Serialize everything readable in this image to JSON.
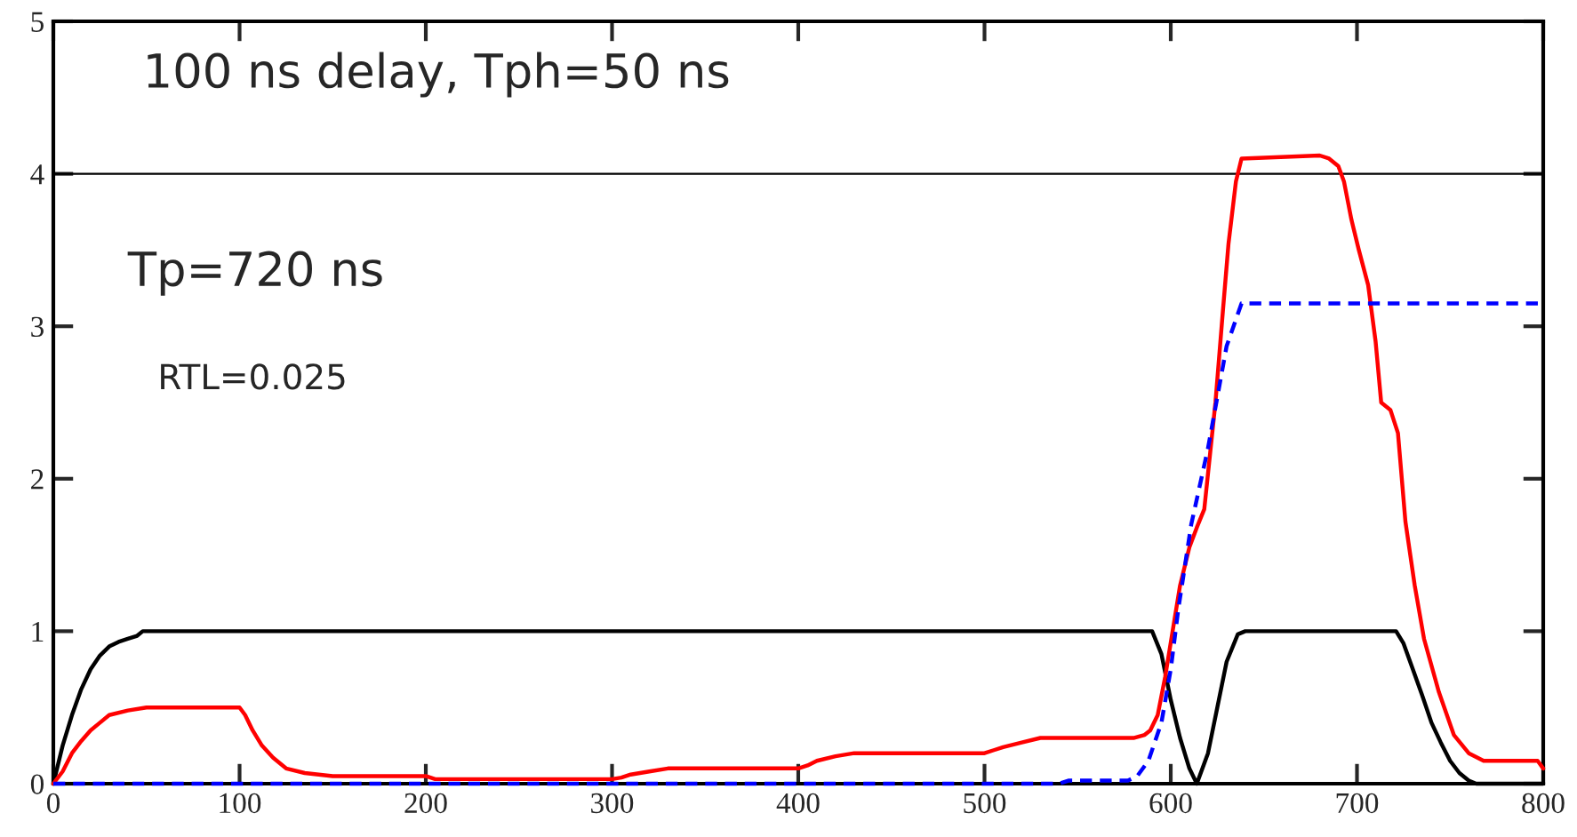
{
  "chart_data": {
    "type": "line",
    "xlim": [
      0,
      800
    ],
    "ylim": [
      0,
      5
    ],
    "xticks": [
      0,
      100,
      200,
      300,
      400,
      500,
      600,
      700,
      800
    ],
    "yticks": [
      0,
      1,
      2,
      3,
      4,
      5
    ],
    "grid": false,
    "legend": false,
    "annotations": [
      "100 ns delay, Tph=50 ns",
      "Tp=720 ns",
      "RTL=0.025"
    ],
    "ref_lines": [
      {
        "axis": "y",
        "value": 4,
        "color": "#000000"
      }
    ],
    "series": [
      {
        "color": "#000000",
        "line_style": "solid",
        "x": [
          0,
          5,
          10,
          15,
          20,
          25,
          30,
          35,
          40,
          45,
          48,
          590,
          595,
          600,
          605,
          610,
          614,
          620,
          625,
          630,
          636,
          640,
          721,
          725,
          730,
          735,
          740,
          745,
          750,
          755,
          760,
          764,
          800
        ],
        "values": [
          0,
          0.25,
          0.45,
          0.62,
          0.75,
          0.84,
          0.9,
          0.93,
          0.95,
          0.97,
          1,
          1,
          0.85,
          0.55,
          0.3,
          0.1,
          0,
          0.2,
          0.5,
          0.8,
          0.98,
          1,
          1,
          0.92,
          0.75,
          0.58,
          0.4,
          0.27,
          0.15,
          0.07,
          0.02,
          0,
          0
        ]
      },
      {
        "color": "#ff0000",
        "line_style": "solid",
        "x": [
          0,
          5,
          10,
          15,
          20,
          25,
          30,
          40,
          50,
          100,
          103,
          107,
          112,
          118,
          125,
          135,
          150,
          200,
          205,
          300,
          305,
          310,
          320,
          330,
          400,
          405,
          410,
          420,
          430,
          500,
          505,
          510,
          520,
          530,
          580,
          586,
          589,
          593,
          597,
          601,
          605,
          610,
          614,
          618,
          624,
          628,
          631,
          635,
          638,
          680,
          685,
          690,
          693,
          697,
          701,
          706,
          710,
          713,
          718,
          722,
          726,
          731,
          736,
          744,
          752,
          760,
          768,
          780,
          797,
          800
        ],
        "values": [
          0,
          0.08,
          0.2,
          0.28,
          0.35,
          0.4,
          0.45,
          0.48,
          0.5,
          0.5,
          0.45,
          0.35,
          0.25,
          0.17,
          0.1,
          0.07,
          0.05,
          0.05,
          0.03,
          0.03,
          0.04,
          0.06,
          0.08,
          0.1,
          0.1,
          0.12,
          0.15,
          0.18,
          0.2,
          0.2,
          0.22,
          0.24,
          0.27,
          0.3,
          0.3,
          0.32,
          0.35,
          0.45,
          0.7,
          1.0,
          1.3,
          1.55,
          1.68,
          1.8,
          2.5,
          3.1,
          3.54,
          3.95,
          4.1,
          4.12,
          4.1,
          4.05,
          3.95,
          3.7,
          3.5,
          3.27,
          2.9,
          2.5,
          2.45,
          2.3,
          1.72,
          1.3,
          0.95,
          0.6,
          0.32,
          0.2,
          0.15,
          0.15,
          0.15,
          0.1
        ]
      },
      {
        "color": "#0000ff",
        "line_style": "dashed",
        "x": [
          0,
          540,
          545,
          577,
          582,
          588,
          595,
          600,
          604,
          611,
          620,
          630,
          638,
          800
        ],
        "values": [
          0,
          0,
          0.02,
          0.02,
          0.05,
          0.15,
          0.4,
          0.75,
          1.14,
          1.7,
          2.2,
          2.87,
          3.15,
          3.15
        ]
      }
    ]
  }
}
